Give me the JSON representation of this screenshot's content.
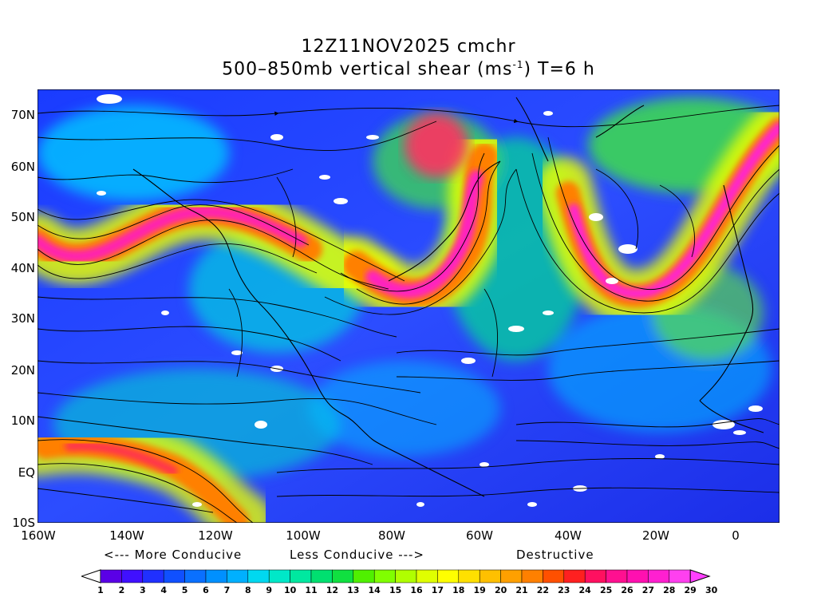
{
  "title": {
    "line1": "12Z11NOV2025 cmchr",
    "line2_prefix": "500–850mb vertical shear (ms",
    "line2_sup": "-1",
    "line2_suffix": ") T=6 h"
  },
  "axes": {
    "y_ticks": [
      "70N",
      "60N",
      "50N",
      "40N",
      "30N",
      "20N",
      "10N",
      "EQ",
      "10S"
    ],
    "x_ticks": [
      "160W",
      "140W",
      "120W",
      "100W",
      "80W",
      "60W",
      "40W",
      "20W",
      "0"
    ]
  },
  "legend": {
    "more_conducive": "<--- More Conducive",
    "less_conducive": "Less Conducive --->",
    "destructive": "Destructive",
    "levels": [
      "1",
      "2",
      "3",
      "4",
      "5",
      "6",
      "7",
      "8",
      "9",
      "10",
      "11",
      "12",
      "13",
      "14",
      "15",
      "16",
      "17",
      "18",
      "19",
      "20",
      "21",
      "22",
      "23",
      "24",
      "25",
      "26",
      "27",
      "28",
      "29",
      "30"
    ],
    "colors": [
      "#ffffff",
      "#5a00e6",
      "#4010ff",
      "#2030ff",
      "#1050ff",
      "#0a70ff",
      "#0090ff",
      "#00b0ff",
      "#00d8f0",
      "#00e8c8",
      "#00e8a0",
      "#00e070",
      "#10e040",
      "#50f000",
      "#80ff00",
      "#b0ff00",
      "#e0ff00",
      "#ffff00",
      "#ffe000",
      "#ffc000",
      "#ffa000",
      "#ff8000",
      "#ff5000",
      "#ff2020",
      "#ff1060",
      "#ff1090",
      "#ff10b0",
      "#ff20d0",
      "#ff40f0",
      "#ff40ff"
    ]
  }
}
